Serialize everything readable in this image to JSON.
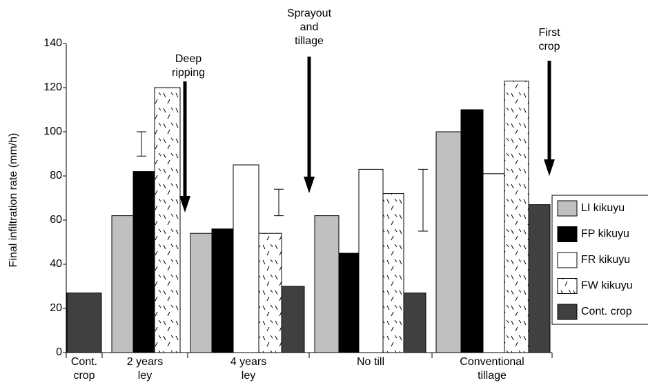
{
  "chart_data": {
    "type": "bar",
    "ylabel": "Final infiltration rate (mm/h)",
    "categories": [
      "Cont.\ncrop",
      "2 years\nley",
      "4 years\nley",
      "No till",
      "Conventional\ntillage"
    ],
    "series": [
      {
        "name": "LI kikuyu",
        "color": "#c0c0c0",
        "values": [
          null,
          62,
          54,
          62,
          100
        ]
      },
      {
        "name": "FP kikuyu",
        "color": "#000000",
        "values": [
          null,
          82,
          56,
          45,
          110
        ]
      },
      {
        "name": "FR kikuyu",
        "color": "#ffffff",
        "values": [
          null,
          null,
          85,
          83,
          81
        ]
      },
      {
        "name": "FW kikuyu",
        "color": "#ffffff",
        "pattern": "dashes",
        "values": [
          null,
          120,
          54,
          72,
          123
        ]
      },
      {
        "name": "Cont. crop",
        "color": "#404040",
        "values": [
          27,
          null,
          30,
          27,
          67
        ]
      }
    ],
    "ylim": [
      0,
      140
    ],
    "yticks": [
      0,
      20,
      40,
      60,
      80,
      100,
      120,
      140
    ],
    "lsd_bars": [
      {
        "low": 89,
        "high": 100
      },
      {
        "low": 62,
        "high": 74
      },
      {
        "low": 55,
        "high": 83
      }
    ],
    "annotations": [
      "Deep\nripping",
      "Sprayout\nand\ntillage",
      "First\ncrop"
    ],
    "legend": "right"
  }
}
